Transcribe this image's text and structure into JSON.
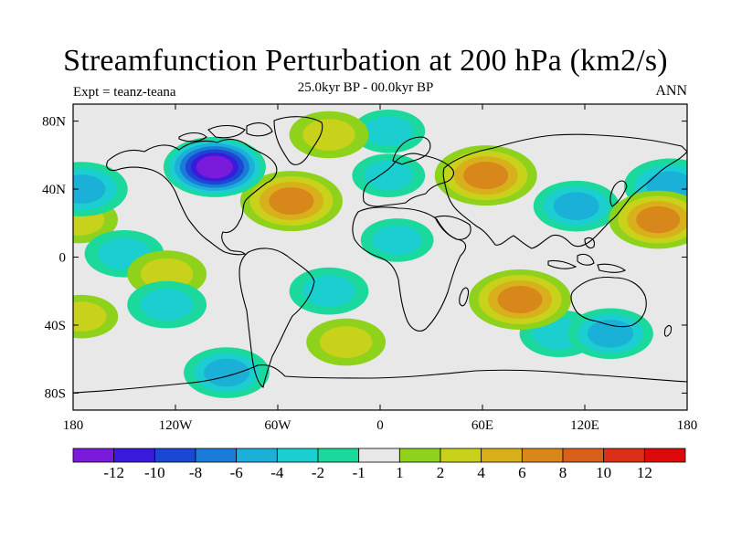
{
  "header": {
    "title": "Streamfunction Perturbation at 200 hPa (km2/s)",
    "subtitle": "25.0kyr BP - 00.0kyr BP",
    "experiment": "Expt = teanz-teana",
    "season": "ANN"
  },
  "map": {
    "lon_range": [
      -180,
      180
    ],
    "lat_range": [
      -90,
      90
    ],
    "x_ticks": [
      {
        "lon": -180,
        "label": "180"
      },
      {
        "lon": -120,
        "label": "120W"
      },
      {
        "lon": -60,
        "label": "60W"
      },
      {
        "lon": 0,
        "label": "0"
      },
      {
        "lon": 60,
        "label": "60E"
      },
      {
        "lon": 120,
        "label": "120E"
      },
      {
        "lon": 180,
        "label": "180"
      }
    ],
    "y_ticks": [
      {
        "lat": 80,
        "label": "80N"
      },
      {
        "lat": 40,
        "label": "40N"
      },
      {
        "lat": 0,
        "label": "0"
      },
      {
        "lat": -40,
        "label": "40S"
      },
      {
        "lat": -80,
        "label": "80S"
      }
    ],
    "anomalies": [
      {
        "name": "north-america-low",
        "lon": -97,
        "lat": 53,
        "value": -12
      },
      {
        "name": "north-atlantic-high",
        "lon": -52,
        "lat": 33,
        "value": 7
      },
      {
        "name": "eurasia-high",
        "lon": 62,
        "lat": 48,
        "value": 7
      },
      {
        "name": "arctic-high",
        "lon": -30,
        "lat": 72,
        "value": 3
      },
      {
        "name": "arctic-low",
        "lon": 5,
        "lat": 74,
        "value": -2
      },
      {
        "name": "east-asia-low",
        "lon": 115,
        "lat": 30,
        "value": -4
      },
      {
        "name": "west-pacific-high",
        "lon": 163,
        "lat": 22,
        "value": 6
      },
      {
        "name": "pacific-low-east",
        "lon": 170,
        "lat": 42,
        "value": -5
      },
      {
        "name": "pacific-low-west",
        "lon": -175,
        "lat": 40,
        "value": -5
      },
      {
        "name": "dateline-high",
        "lon": -177,
        "lat": 22,
        "value": 3
      },
      {
        "name": "tropical-pacific-low",
        "lon": -150,
        "lat": 2,
        "value": -3
      },
      {
        "name": "eastern-pacific-high",
        "lon": -125,
        "lat": -10,
        "value": 3
      },
      {
        "name": "south-pacific-low",
        "lon": -125,
        "lat": -28,
        "value": -3
      },
      {
        "name": "south-america-low",
        "lon": -30,
        "lat": -20,
        "value": -3
      },
      {
        "name": "south-atlantic-high",
        "lon": -20,
        "lat": -50,
        "value": 3
      },
      {
        "name": "south-pacific-high",
        "lon": -175,
        "lat": -35,
        "value": 2
      },
      {
        "name": "southern-ocean-low",
        "lon": -90,
        "lat": -68,
        "value": -4
      },
      {
        "name": "indian-ocean-high",
        "lon": 82,
        "lat": -25,
        "value": 7
      },
      {
        "name": "australia-low",
        "lon": 135,
        "lat": -45,
        "value": -4
      },
      {
        "name": "east-indian-low",
        "lon": 105,
        "lat": -45,
        "value": -3
      },
      {
        "name": "tropical-atlantic-low",
        "lon": 10,
        "lat": 10,
        "value": -2
      },
      {
        "name": "europe-low",
        "lon": 5,
        "lat": 48,
        "value": -2
      }
    ]
  },
  "colorbar": {
    "colors": [
      "#7a1bdc",
      "#3a1bdc",
      "#1b48d2",
      "#1b7bd8",
      "#1bb0d8",
      "#1bcfd0",
      "#1bd89c",
      "#e8e8e8",
      "#8ed21b",
      "#c8d21b",
      "#d8b01b",
      "#d8881b",
      "#d8601b",
      "#dc301b",
      "#dc0a0a"
    ],
    "levels": [
      -14,
      -12,
      -10,
      -8,
      -6,
      -4,
      -2,
      -1,
      1,
      2,
      4,
      6,
      8,
      10,
      12,
      14
    ],
    "labels": [
      "-12",
      "-10",
      "-8",
      "-6",
      "-4",
      "-2",
      "-1",
      "1",
      "2",
      "4",
      "6",
      "8",
      "10",
      "12"
    ]
  }
}
